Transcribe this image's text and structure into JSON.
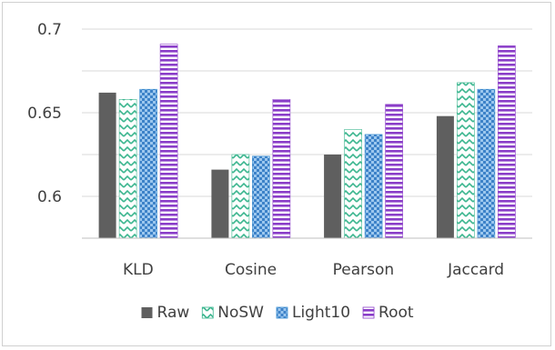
{
  "chart_data": {
    "type": "bar",
    "categories": [
      "KLD",
      "Cosine",
      "Pearson",
      "Jaccard"
    ],
    "series": [
      {
        "name": "Raw",
        "color": "#5f5f5f",
        "pattern": "solid",
        "values": [
          0.662,
          0.616,
          0.625,
          0.648
        ]
      },
      {
        "name": "NoSW",
        "color": "#3cb68f",
        "pattern": "zigzag",
        "values": [
          0.658,
          0.625,
          0.64,
          0.668
        ]
      },
      {
        "name": "Light10",
        "color": "#3d8fd1",
        "pattern": "checker",
        "values": [
          0.664,
          0.624,
          0.637,
          0.664
        ]
      },
      {
        "name": "Root",
        "color": "#8a3dc8",
        "pattern": "hstripes",
        "values": [
          0.691,
          0.658,
          0.655,
          0.69
        ]
      }
    ],
    "yticks": [
      "0.6",
      "0.65",
      "0.7"
    ],
    "ylim": [
      0.575,
      0.7
    ],
    "grid": true,
    "legend_position": "bottom"
  }
}
